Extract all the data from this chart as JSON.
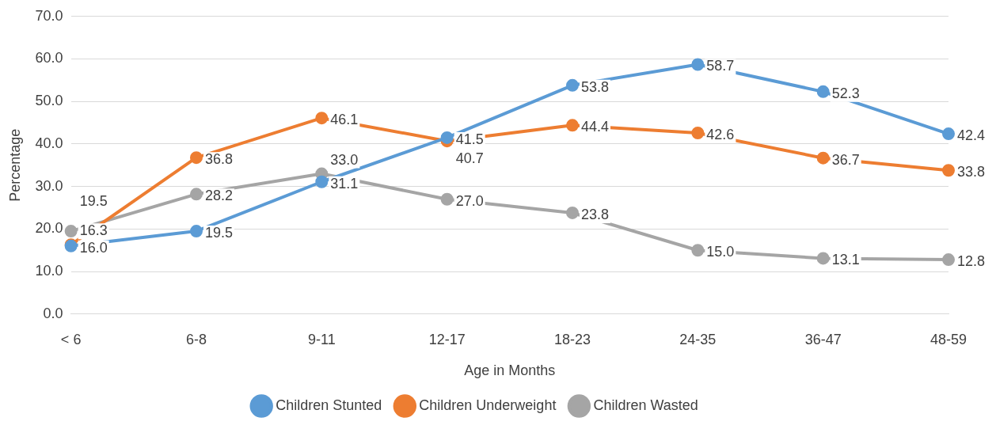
{
  "chart_data": {
    "type": "line",
    "xlabel": "Age in Months",
    "ylabel": "Percentage",
    "categories": [
      "< 6",
      "6-8",
      "9-11",
      "12-17",
      "18-23",
      "24-35",
      "36-47",
      "48-59"
    ],
    "series": [
      {
        "name": "Children Stunted",
        "color": "#5b9bd5",
        "values": [
          16.0,
          19.5,
          31.1,
          41.5,
          53.8,
          58.7,
          52.3,
          42.4
        ],
        "value_labels": [
          "16.0",
          "19.5",
          "31.1",
          "41.5",
          "53.8",
          "58.7",
          "52.3",
          "42.4"
        ]
      },
      {
        "name": "Children Underweight",
        "color": "#ed7d31",
        "values": [
          16.3,
          36.8,
          46.1,
          40.7,
          44.4,
          42.6,
          36.7,
          33.8
        ],
        "value_labels": [
          "16.3",
          "36.8",
          "46.1",
          "40.7",
          "44.4",
          "42.6",
          "36.7",
          "33.8"
        ]
      },
      {
        "name": "Children Wasted",
        "color": "#a5a5a5",
        "values": [
          19.5,
          28.2,
          33.0,
          27.0,
          23.8,
          15.0,
          13.1,
          12.8
        ],
        "value_labels": [
          "19.5",
          "28.2",
          "33.0",
          "27.0",
          "23.8",
          "15.0",
          "13.1",
          "12.8"
        ]
      }
    ],
    "ylim": [
      0,
      70
    ],
    "yticks": [
      {
        "value": 0,
        "label": "0.0"
      },
      {
        "value": 10,
        "label": "10.0"
      },
      {
        "value": 20,
        "label": "20.0"
      },
      {
        "value": 30,
        "label": "30.0"
      },
      {
        "value": 40,
        "label": "40.0"
      },
      {
        "value": 50,
        "label": "50.0"
      },
      {
        "value": 60,
        "label": "60.0"
      },
      {
        "value": 70,
        "label": "70.0"
      }
    ],
    "grid": "y",
    "legend": "bottom",
    "marker": "circle",
    "line_style": "solid"
  }
}
